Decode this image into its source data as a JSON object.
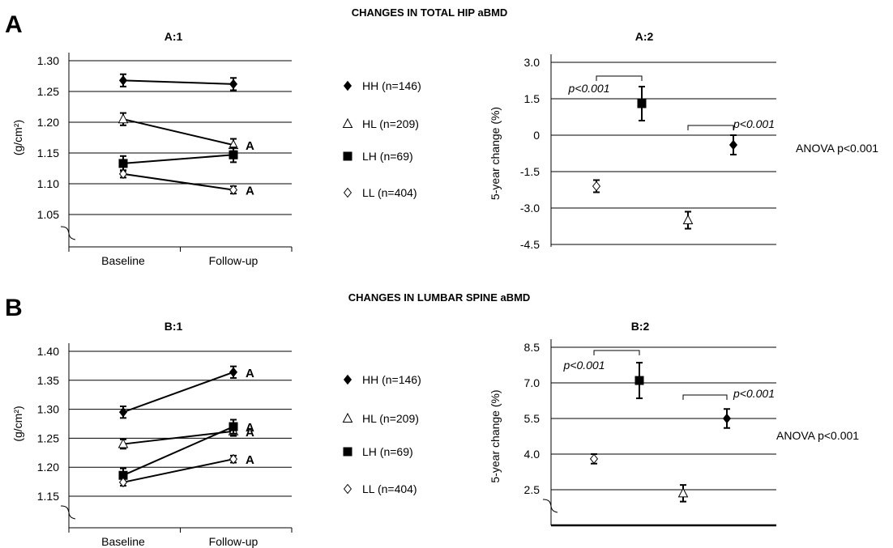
{
  "sections": [
    {
      "letter": "A",
      "title": "CHANGES IN TOTAL HIP aBMD"
    },
    {
      "letter": "B",
      "title": "CHANGES IN LUMBAR SPINE aBMD"
    }
  ],
  "legend": [
    {
      "label": "HH (n=146)",
      "marker": "diamond-filled"
    },
    {
      "label": "HL (n=209)",
      "marker": "triangle-open"
    },
    {
      "label": "LH (n=69)",
      "marker": "square-filled"
    },
    {
      "label": "LL (n=404)",
      "marker": "diamond-open"
    }
  ],
  "chart_data": [
    {
      "id": "A1",
      "type": "line",
      "title": "A:1",
      "xlabel": "",
      "ylabel": "(g/cm²)",
      "categories": [
        "Baseline",
        "Follow-up"
      ],
      "ylim": [
        1.05,
        1.3
      ],
      "yticks": [
        "1.30",
        "1.25",
        "1.20",
        "1.15",
        "1.10",
        "1.05"
      ],
      "grid": true,
      "axis_break": true,
      "series": [
        {
          "name": "HH (n=146)",
          "marker": "diamond-filled",
          "values": [
            1.268,
            1.262
          ],
          "errors": [
            0.01,
            0.01
          ],
          "annotations": [
            "",
            ""
          ]
        },
        {
          "name": "HL (n=209)",
          "marker": "triangle-open",
          "values": [
            1.205,
            1.163
          ],
          "errors": [
            0.01,
            0.01
          ],
          "annotations": [
            "",
            "A"
          ]
        },
        {
          "name": "LH (n=69)",
          "marker": "square-filled",
          "values": [
            1.133,
            1.147
          ],
          "errors": [
            0.012,
            0.012
          ],
          "annotations": [
            "",
            ""
          ]
        },
        {
          "name": "LL (n=404)",
          "marker": "diamond-open",
          "values": [
            1.116,
            1.09
          ],
          "errors": [
            0.006,
            0.006
          ],
          "annotations": [
            "",
            "A"
          ]
        }
      ]
    },
    {
      "id": "A2",
      "type": "scatter",
      "title": "A:2",
      "xlabel": "",
      "ylabel": "5-year change (%)",
      "ylim": [
        -4.5,
        3.0
      ],
      "yticks": [
        "3.0",
        "1.5",
        "0",
        "-1.5",
        "-3.0",
        "-4.5"
      ],
      "grid": true,
      "order": [
        "LL (n=404)",
        "LH (n=69)",
        "HL (n=209)",
        "HH (n=146)"
      ],
      "points": [
        {
          "name": "LL (n=404)",
          "marker": "diamond-open",
          "value": -2.1,
          "error": 0.25
        },
        {
          "name": "LH (n=69)",
          "marker": "square-filled",
          "value": 1.3,
          "error": 0.7
        },
        {
          "name": "HL (n=209)",
          "marker": "triangle-open",
          "value": -3.5,
          "error": 0.35
        },
        {
          "name": "HH (n=146)",
          "marker": "diamond-filled",
          "value": -0.4,
          "error": 0.4
        }
      ],
      "comparisons": [
        {
          "from": 0,
          "to": 1,
          "label": "p<0.001"
        },
        {
          "from": 2,
          "to": 3,
          "label": "p<0.001"
        }
      ],
      "anova": "ANOVA p<0.001"
    },
    {
      "id": "B1",
      "type": "line",
      "title": "B:1",
      "xlabel": "",
      "ylabel": "(g/cm²)",
      "categories": [
        "Baseline",
        "Follow-up"
      ],
      "ylim": [
        1.15,
        1.4
      ],
      "yticks": [
        "1.40",
        "1.35",
        "1.30",
        "1.25",
        "1.20",
        "1.15"
      ],
      "grid": true,
      "axis_break": true,
      "series": [
        {
          "name": "HH (n=146)",
          "marker": "diamond-filled",
          "values": [
            1.295,
            1.364
          ],
          "errors": [
            0.01,
            0.01
          ],
          "annotations": [
            "",
            "A"
          ]
        },
        {
          "name": "HL (n=209)",
          "marker": "triangle-open",
          "values": [
            1.24,
            1.262
          ],
          "errors": [
            0.008,
            0.008
          ],
          "annotations": [
            "",
            "A"
          ]
        },
        {
          "name": "LH (n=69)",
          "marker": "square-filled",
          "values": [
            1.186,
            1.27
          ],
          "errors": [
            0.012,
            0.012
          ],
          "annotations": [
            "",
            "A"
          ]
        },
        {
          "name": "LL (n=404)",
          "marker": "diamond-open",
          "values": [
            1.174,
            1.214
          ],
          "errors": [
            0.006,
            0.006
          ],
          "annotations": [
            "",
            "A"
          ]
        }
      ]
    },
    {
      "id": "B2",
      "type": "scatter",
      "title": "B:2",
      "xlabel": "",
      "ylabel": "5-year change (%)",
      "ylim": [
        1.0,
        8.5
      ],
      "yticks": [
        "8.5",
        "7.0",
        "5.5",
        "4.0",
        "2.5"
      ],
      "grid": true,
      "axis_break": true,
      "order": [
        "LL (n=404)",
        "LH (n=69)",
        "HL (n=209)",
        "HH (n=146)"
      ],
      "points": [
        {
          "name": "LL (n=404)",
          "marker": "diamond-open",
          "value": 3.8,
          "error": 0.2
        },
        {
          "name": "LH (n=69)",
          "marker": "square-filled",
          "value": 7.1,
          "error": 0.75
        },
        {
          "name": "HL (n=209)",
          "marker": "triangle-open",
          "value": 2.35,
          "error": 0.35
        },
        {
          "name": "HH (n=146)",
          "marker": "diamond-filled",
          "value": 5.5,
          "error": 0.4
        }
      ],
      "comparisons": [
        {
          "from": 0,
          "to": 1,
          "label": "p<0.001"
        },
        {
          "from": 2,
          "to": 3,
          "label": "p<0.001"
        }
      ],
      "anova": "ANOVA p<0.001"
    }
  ]
}
